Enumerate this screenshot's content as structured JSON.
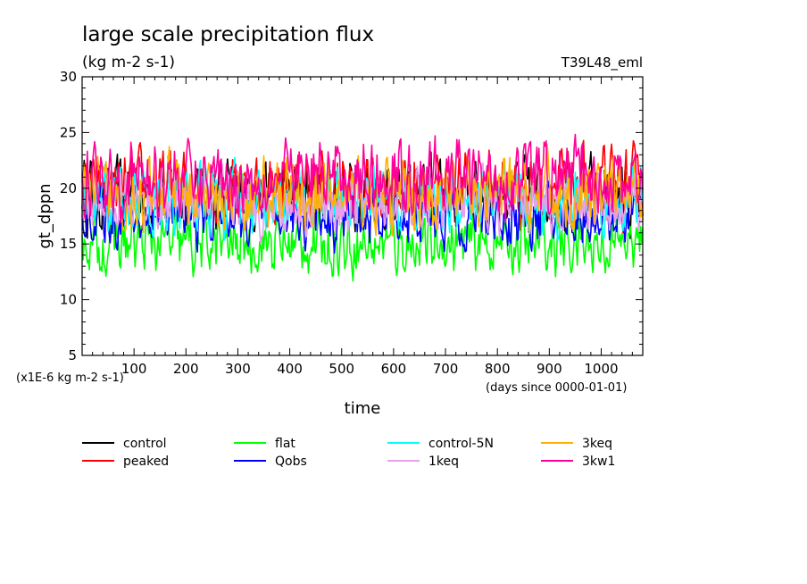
{
  "chart_data": {
    "type": "line",
    "title": "large scale precipitation flux",
    "subtitle": "(kg m-2 s-1)",
    "run_label": "T39L48_eml",
    "ylabel": "gt_dppn",
    "xlabel": "time",
    "y_scale_note": "(x1E-6 kg m-2 s-1)",
    "x_unit_note": "(days since 0000-01-01)",
    "xlim": [
      0,
      1080
    ],
    "ylim": [
      5,
      30
    ],
    "xticks": [
      "100",
      "200",
      "300",
      "400",
      "500",
      "600",
      "700",
      "800",
      "900",
      "1000"
    ],
    "yticks": [
      "5",
      "10",
      "15",
      "20",
      "25",
      "30"
    ],
    "legend_position": "bottom",
    "series": [
      {
        "name": "control",
        "color": "#000000",
        "mean": 19.6,
        "amp": 1.5
      },
      {
        "name": "peaked",
        "color": "#ff0000",
        "mean": 20.0,
        "amp": 1.5
      },
      {
        "name": "flat",
        "color": "#00ff00",
        "mean": 15.0,
        "amp": 1.3
      },
      {
        "name": "Qobs",
        "color": "#0000ff",
        "mean": 17.5,
        "amp": 1.3
      },
      {
        "name": "control-5N",
        "color": "#00ffff",
        "mean": 19.0,
        "amp": 1.5
      },
      {
        "name": "1keq",
        "color": "#e8a0e8",
        "mean": 18.6,
        "amp": 1.3
      },
      {
        "name": "3keq",
        "color": "#ffb000",
        "mean": 19.4,
        "amp": 1.5
      },
      {
        "name": "3kw1",
        "color": "#ff0099",
        "mean": 21.0,
        "amp": 1.6
      }
    ]
  }
}
